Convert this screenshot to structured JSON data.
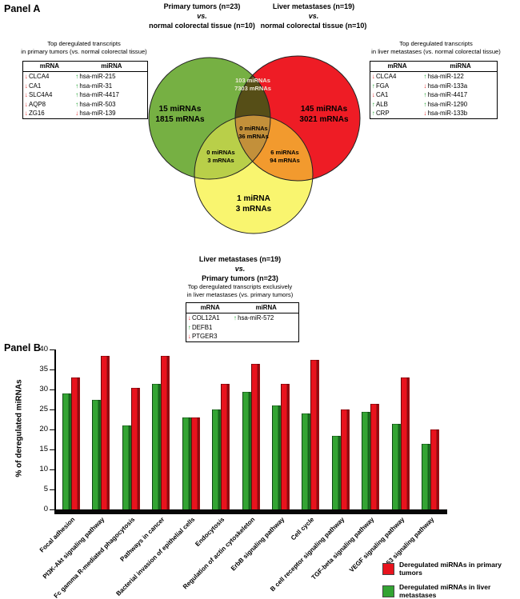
{
  "panel_a": {
    "label": "Panel A",
    "left_header": {
      "line1": "Primary tumors (n=23)",
      "line2": "vs.",
      "line3": "normal colorectal tissue (n=10)"
    },
    "right_header": {
      "line1": "Liver metastases (n=19)",
      "line2": "vs.",
      "line3": "normal colorectal tissue (n=10)"
    },
    "left_table": {
      "title_line1": "Top deregulated transcripts",
      "title_line2": "in primary tumors (vs. normal colorectal tissue)",
      "headers": [
        "mRNA",
        "miRNA"
      ],
      "rows": [
        {
          "mrna": "CLCA4",
          "mrna_dir": "down",
          "mirna": "hsa-miR-215",
          "mirna_dir": "up"
        },
        {
          "mrna": "CA1",
          "mrna_dir": "down",
          "mirna": "hsa-miR-31",
          "mirna_dir": "up"
        },
        {
          "mrna": "SLC4A4",
          "mrna_dir": "down",
          "mirna": "hsa-miR-4417",
          "mirna_dir": "up"
        },
        {
          "mrna": "AQP8",
          "mrna_dir": "down",
          "mirna": "hsa-miR-503",
          "mirna_dir": "up"
        },
        {
          "mrna": "ZG16",
          "mrna_dir": "down",
          "mirna": "hsa-miR-139",
          "mirna_dir": "down"
        }
      ]
    },
    "right_table": {
      "title_line1": "Top deregulated transcripts",
      "title_line2": "in liver metastases (vs. normal colorectal tissue)",
      "headers": [
        "mRNA",
        "miRNA"
      ],
      "rows": [
        {
          "mrna": "CLCA4",
          "mrna_dir": "down",
          "mirna": "hsa-miR-122",
          "mirna_dir": "up"
        },
        {
          "mrna": "FGA",
          "mrna_dir": "up",
          "mirna": "hsa-miR-133a",
          "mirna_dir": "down"
        },
        {
          "mrna": "CA1",
          "mrna_dir": "down",
          "mirna": "hsa-miR-4417",
          "mirna_dir": "up"
        },
        {
          "mrna": "ALB",
          "mrna_dir": "up",
          "mirna": "hsa-miR-1290",
          "mirna_dir": "up"
        },
        {
          "mrna": "CRP",
          "mrna_dir": "up",
          "mirna": "hsa-miR-133b",
          "mirna_dir": "down"
        }
      ]
    },
    "venn": {
      "green": {
        "line1": "15 miRNAs",
        "line2": "1815 mRNAs"
      },
      "red": {
        "line1": "145 miRNAs",
        "line2": "3021 mRNAs"
      },
      "yellow": {
        "line1": "1 miRNA",
        "line2": "3 mRNAs"
      },
      "green_red": {
        "line1": "103 miRNAs",
        "line2": "7303 mRNAs"
      },
      "center": {
        "line1": "0 miRNAs",
        "line2": "36 mRNAs"
      },
      "green_yellow": {
        "line1": "0 miRNAs",
        "line2": "3 mRNAs"
      },
      "red_yellow": {
        "line1": "6 miRNAs",
        "line2": "94 mRNAs"
      },
      "colors": {
        "green": "#76b043",
        "red": "#ee1c25",
        "yellow": "#f9f56f",
        "green_red": "#564e17",
        "green_yellow": "#b9cf49",
        "red_yellow": "#f29a2e",
        "center": "#c3903a"
      }
    },
    "bottom_header": {
      "line1": "Liver metastases (n=19)",
      "line2": "vs.",
      "line3": "Primary tumors (n=23)"
    },
    "bottom_table": {
      "title_line1": "Top deregulated transcripts exclusively",
      "title_line2": "in liver metastases (vs. primary tumors)",
      "headers": [
        "mRNA",
        "miRNA"
      ],
      "rows": [
        {
          "mrna": "COL12A1",
          "mrna_dir": "down",
          "mirna": "hsa-miR-572",
          "mirna_dir": "up"
        },
        {
          "mrna": "DEFB1",
          "mrna_dir": "up",
          "mirna": "",
          "mirna_dir": ""
        },
        {
          "mrna": "PTGER3",
          "mrna_dir": "down",
          "mirna": "",
          "mirna_dir": ""
        }
      ]
    }
  },
  "panel_b": {
    "label": "Panel B",
    "legend": [
      {
        "label": "Deregulated miRNAs in primary tumors",
        "color": "#e8131d"
      },
      {
        "label": "Deregulated miRNAs in liver metastases",
        "color": "#33a433"
      }
    ]
  },
  "chart_data": {
    "type": "bar",
    "title": "",
    "xlabel": "",
    "ylabel": "% of deregulated miRNAs",
    "ylim": [
      0,
      40
    ],
    "ytick_step": 5,
    "grid": false,
    "legend_position": "bottom-right",
    "categories": [
      "Focal adhesion",
      "PI3K-Akt signaling pathway",
      "Fc gamma R-mediated phagocytosis",
      "Pathways in cancer",
      "Bacterial invasion of epithelial cells",
      "Endocytosis",
      "Regulation of actin cytoskeleton",
      "ErbB signaling pathway",
      "Cell cycle",
      "B cell receptor signaling pathway",
      "TGF-beta signaling pathway",
      "VEGF signaling pathway",
      "p53 signaling pathway"
    ],
    "series": [
      {
        "key": "liver_metastases",
        "name": "Deregulated miRNAs in liver metastases",
        "color": "#33a433",
        "shade": "#17641c",
        "values": [
          29,
          27.5,
          21,
          31.5,
          23,
          25,
          29.5,
          26,
          24,
          18.5,
          24.5,
          21.5,
          16.5
        ]
      },
      {
        "key": "primary_tumors",
        "name": "Deregulated miRNAs in primary tumors",
        "color": "#e8131d",
        "shade": "#8f0b10",
        "values": [
          33,
          38.5,
          30.5,
          38.5,
          23,
          31.5,
          36.5,
          31.5,
          37.5,
          25,
          26.5,
          33,
          20
        ]
      }
    ]
  }
}
